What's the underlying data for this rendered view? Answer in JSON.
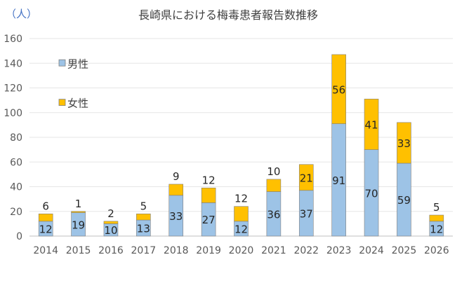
{
  "chart_data": {
    "type": "bar",
    "stacked": true,
    "title": "長崎県における梅毒患者報告数推移",
    "ylabel": "（人）",
    "xlabel": "",
    "ylim": [
      0,
      160
    ],
    "yticks": [
      0,
      20,
      40,
      60,
      80,
      100,
      120,
      140,
      160
    ],
    "grid": true,
    "legend_position": "top-left",
    "categories": [
      "2014",
      "2015",
      "2016",
      "2017",
      "2018",
      "2019",
      "2020",
      "2021",
      "2022",
      "2023",
      "2024",
      "2025",
      "2026"
    ],
    "series": [
      {
        "name": "男性",
        "color": "#9dc3e6",
        "values": [
          12,
          19,
          10,
          13,
          33,
          27,
          12,
          36,
          37,
          91,
          70,
          59,
          12
        ]
      },
      {
        "name": "女性",
        "color": "#ffc000",
        "values": [
          6,
          1,
          2,
          5,
          9,
          12,
          12,
          10,
          21,
          56,
          41,
          33,
          5
        ]
      }
    ]
  }
}
